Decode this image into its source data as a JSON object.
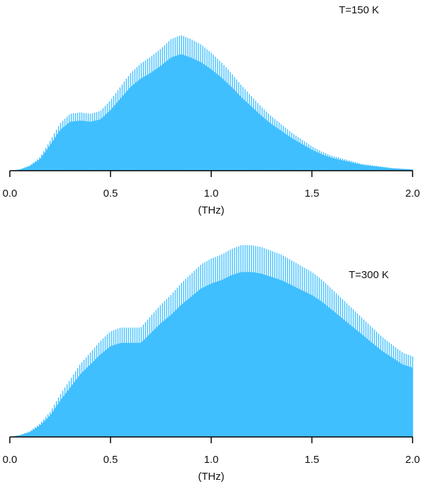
{
  "chart_data": [
    {
      "type": "area",
      "annotation": "T=150 K",
      "xlabel": "(THz)",
      "ylabel": "",
      "xlim": [
        0.0,
        2.0
      ],
      "ylim": [
        0,
        1
      ],
      "xticks": [
        "0.0",
        "0.5",
        "1.0",
        "1.5",
        "2.0"
      ],
      "grid": false,
      "color": "#40bfff",
      "series": [
        {
          "x": [
            0.0,
            0.05,
            0.1,
            0.15,
            0.2,
            0.25,
            0.3,
            0.35,
            0.4,
            0.45,
            0.5,
            0.55,
            0.6,
            0.65,
            0.7,
            0.75,
            0.8,
            0.85,
            0.9,
            0.95,
            1.0,
            1.05,
            1.1,
            1.15,
            1.2,
            1.25,
            1.3,
            1.35,
            1.4,
            1.45,
            1.5,
            1.55,
            1.6,
            1.65,
            1.7,
            1.75,
            1.8,
            1.85,
            1.9,
            1.95,
            2.0
          ],
          "y": [
            0.0,
            0.01,
            0.04,
            0.1,
            0.22,
            0.35,
            0.42,
            0.43,
            0.42,
            0.44,
            0.52,
            0.62,
            0.72,
            0.79,
            0.84,
            0.9,
            0.97,
            1.0,
            0.97,
            0.93,
            0.87,
            0.8,
            0.72,
            0.63,
            0.55,
            0.47,
            0.4,
            0.34,
            0.28,
            0.23,
            0.18,
            0.14,
            0.11,
            0.09,
            0.07,
            0.05,
            0.04,
            0.03,
            0.02,
            0.015,
            0.01
          ]
        }
      ]
    },
    {
      "type": "area",
      "annotation": "T=300 K",
      "xlabel": "(THz)",
      "ylabel": "",
      "xlim": [
        0.0,
        2.0
      ],
      "ylim": [
        0,
        1
      ],
      "xticks": [
        "0.0",
        "0.5",
        "1.0",
        "1.5",
        "2.0"
      ],
      "grid": false,
      "color": "#40bfff",
      "series": [
        {
          "x": [
            0.0,
            0.05,
            0.1,
            0.15,
            0.2,
            0.25,
            0.3,
            0.35,
            0.4,
            0.45,
            0.5,
            0.55,
            0.6,
            0.65,
            0.7,
            0.75,
            0.8,
            0.85,
            0.9,
            0.95,
            1.0,
            1.05,
            1.1,
            1.15,
            1.2,
            1.25,
            1.3,
            1.35,
            1.4,
            1.45,
            1.5,
            1.55,
            1.6,
            1.65,
            1.7,
            1.75,
            1.8,
            1.85,
            1.9,
            1.95,
            2.0
          ],
          "y": [
            0.0,
            0.01,
            0.03,
            0.07,
            0.13,
            0.22,
            0.3,
            0.38,
            0.44,
            0.5,
            0.55,
            0.57,
            0.57,
            0.57,
            0.63,
            0.69,
            0.74,
            0.8,
            0.85,
            0.9,
            0.93,
            0.95,
            0.98,
            1.0,
            1.0,
            0.99,
            0.97,
            0.95,
            0.92,
            0.89,
            0.86,
            0.82,
            0.77,
            0.72,
            0.67,
            0.62,
            0.57,
            0.52,
            0.48,
            0.44,
            0.42
          ]
        }
      ]
    }
  ]
}
